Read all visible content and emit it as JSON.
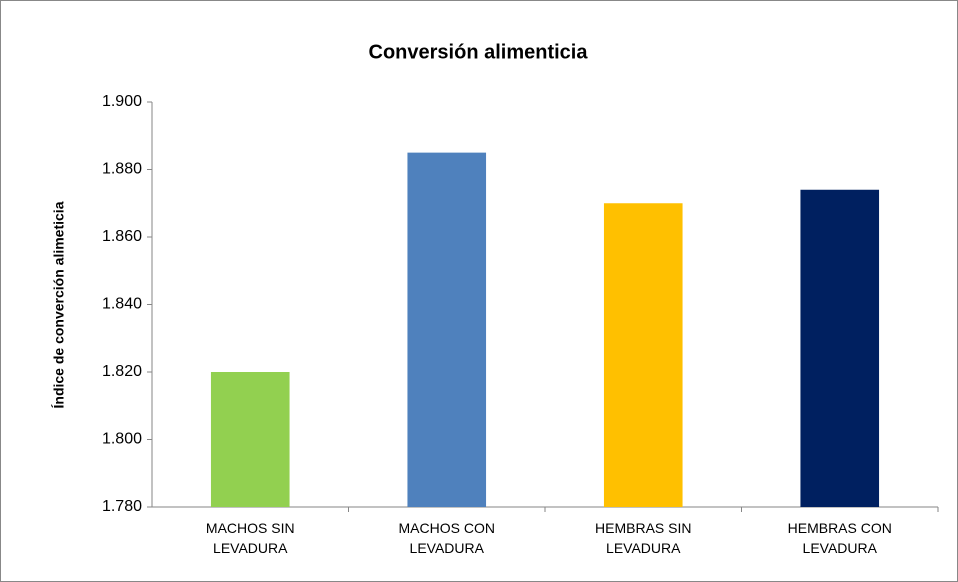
{
  "chart_data": {
    "type": "bar",
    "title": "Conversión alimenticia",
    "y_label": "Índice de converción alimeticia",
    "categories": [
      "MACHOS SIN LEVADURA",
      "MACHOS CON LEVADURA",
      "HEMBRAS SIN LEVADURA",
      "HEMBRAS CON LEVADURA"
    ],
    "values": [
      1.82,
      1.885,
      1.87,
      1.874
    ],
    "colors": [
      "#92d050",
      "#4f81bd",
      "#ffc000",
      "#002060"
    ],
    "ylim": [
      1.78,
      1.9
    ],
    "yticks": [
      {
        "value": 1.78,
        "label": "1.780"
      },
      {
        "value": 1.8,
        "label": "1.800"
      },
      {
        "value": 1.82,
        "label": "1.820"
      },
      {
        "value": 1.84,
        "label": "1.840"
      },
      {
        "value": 1.86,
        "label": "1.860"
      },
      {
        "value": 1.88,
        "label": "1.880"
      },
      {
        "value": 1.9,
        "label": "1.900"
      }
    ],
    "grid": false
  }
}
